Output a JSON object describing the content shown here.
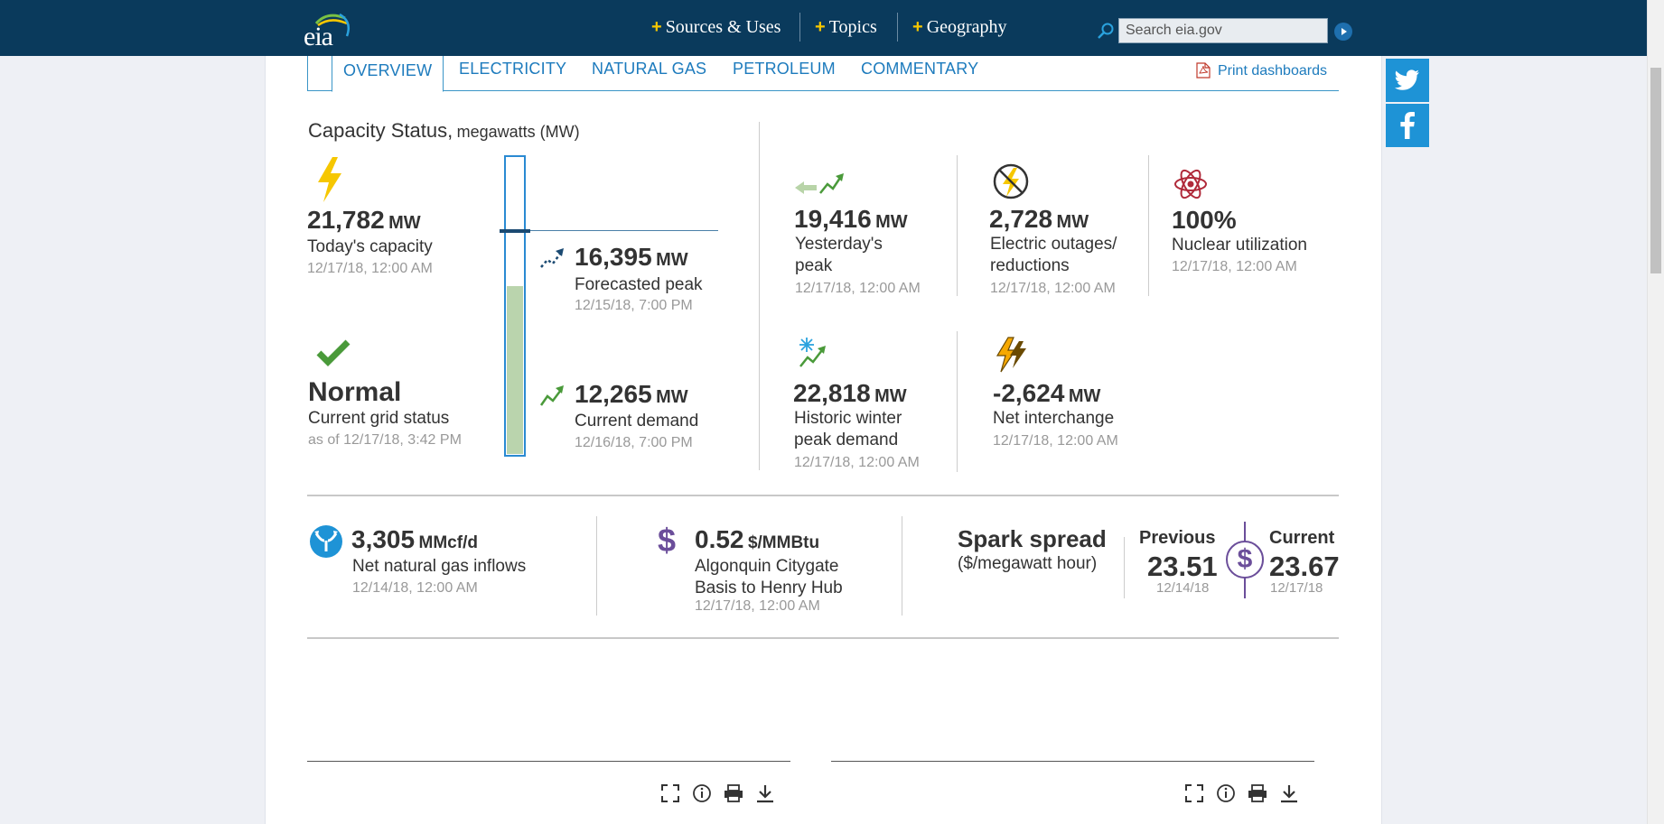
{
  "header": {
    "logo": "eia",
    "nav": [
      "Sources & Uses",
      "Topics",
      "Geography"
    ],
    "search_placeholder": "Search eia.gov"
  },
  "tabs": [
    "OVERVIEW",
    "ELECTRICITY",
    "NATURAL GAS",
    "PETROLEUM",
    "COMMENTARY"
  ],
  "print_label": "Print dashboards",
  "capacity": {
    "title": "Capacity Status,",
    "title_unit": "megawatts (MW)",
    "today": {
      "value": "21,782",
      "unit": "MW",
      "label": "Today's capacity",
      "date": "12/17/18, 12:00 AM"
    },
    "forecast": {
      "value": "16,395",
      "unit": "MW",
      "label": "Forecasted peak",
      "date": "12/15/18, 7:00 PM"
    },
    "status": {
      "value": "Normal",
      "label": "Current grid status",
      "date": "as of 12/17/18, 3:42 PM"
    },
    "demand": {
      "value": "12,265",
      "unit": "MW",
      "label": "Current demand",
      "date": "12/16/18, 7:00 PM"
    },
    "gauge": {
      "capacity": 21782,
      "forecast": 16395,
      "demand": 12265
    }
  },
  "metrics": {
    "yesterday": {
      "value": "19,416",
      "unit": "MW",
      "label1": "Yesterday's",
      "label2": "peak",
      "date": "12/17/18, 12:00 AM"
    },
    "outages": {
      "value": "2,728",
      "unit": "MW",
      "label1": "Electric outages/",
      "label2": "reductions",
      "date": "12/17/18, 12:00 AM"
    },
    "nuclear": {
      "value": "100%",
      "label": "Nuclear utilization",
      "date": "12/17/18, 12:00 AM"
    },
    "winter": {
      "value": "22,818",
      "unit": "MW",
      "label1": "Historic winter",
      "label2": "peak demand",
      "date": "12/17/18, 12:00 AM"
    },
    "interchange": {
      "value": "-2,624",
      "unit": "MW",
      "label": "Net interchange",
      "date": "12/17/18, 12:00 AM"
    }
  },
  "gas": {
    "value": "3,305",
    "unit": "MMcf/d",
    "label": "Net natural gas inflows",
    "date": "12/14/18, 12:00 AM"
  },
  "basis": {
    "value": "0.52",
    "unit": "$/MMBtu",
    "label1": "Algonquin Citygate",
    "label2": "Basis to Henry Hub",
    "date": "12/17/18, 12:00 AM"
  },
  "spark": {
    "title": "Spark spread",
    "subtitle": "($/megawatt hour)",
    "previous": {
      "label": "Previous",
      "value": "23.51",
      "date": "12/14/18"
    },
    "current": {
      "label": "Current",
      "value": "23.67",
      "date": "12/17/18"
    }
  },
  "colors": {
    "header": "#0a3a5c",
    "link": "#1d7bbd",
    "gauge_fill": "#bad4ad",
    "accent_green": "#4a9a3a",
    "purple": "#6b4e9a"
  }
}
